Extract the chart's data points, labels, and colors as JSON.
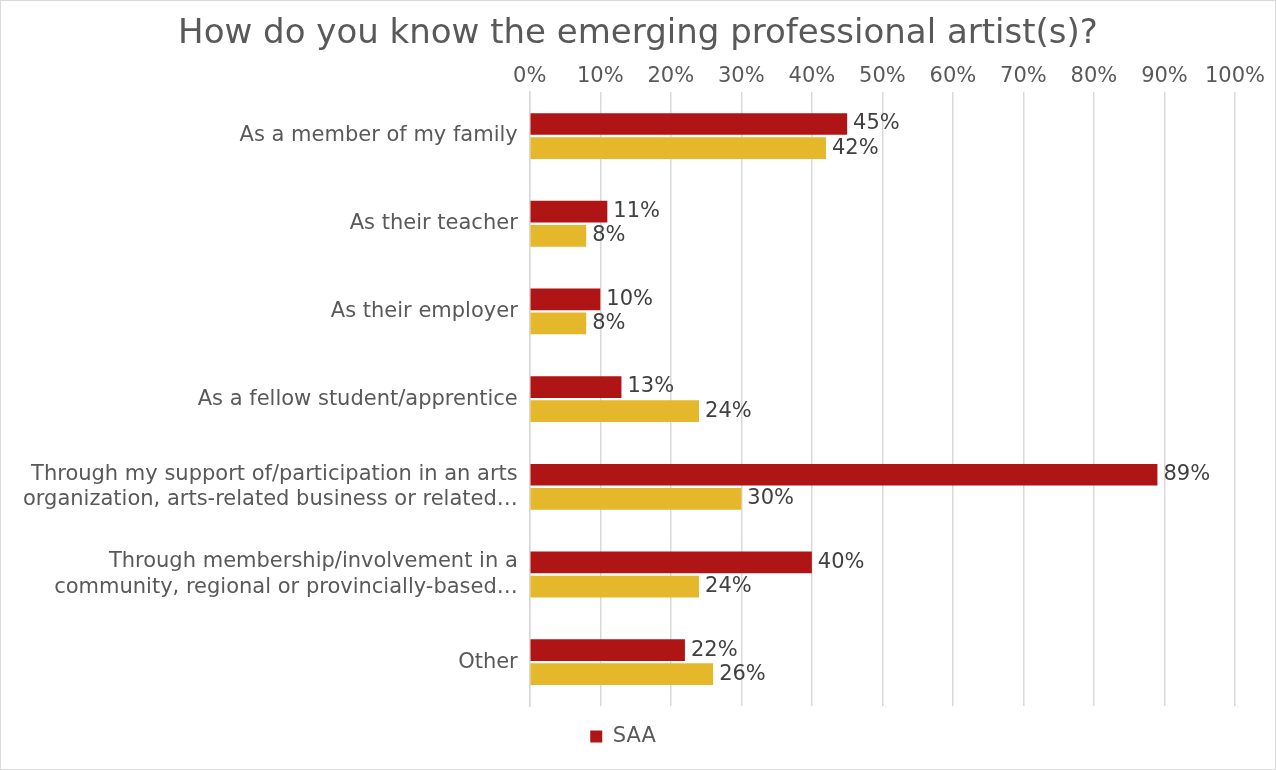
{
  "chart_data": {
    "type": "bar",
    "orientation": "horizontal",
    "title": "How do you know the emerging professional artist(s)?",
    "categories": [
      "As a member of my family",
      "As their teacher",
      "As their employer",
      "As a fellow student/apprentice",
      "Through my support of/participation in an arts organization, arts-related business or related…",
      "Through membership/involvement in a community, regional or provincially-based…",
      "Other"
    ],
    "series": [
      {
        "name": "SAA",
        "color": "#b01515",
        "values": [
          45,
          11,
          10,
          13,
          89,
          40,
          22
        ],
        "value_labels": [
          "45%",
          "11%",
          "10%",
          "13%",
          "89%",
          "40%",
          "22%"
        ]
      },
      {
        "color": "#e5b72a",
        "values": [
          42,
          8,
          8,
          24,
          30,
          24,
          26
        ],
        "value_labels": [
          "42%",
          "8%",
          "8%",
          "24%",
          "30%",
          "24%",
          "26%"
        ]
      }
    ],
    "xlim": [
      0,
      100
    ],
    "xticks": [
      {
        "value": 0,
        "label": "0%"
      },
      {
        "value": 10,
        "label": "10%"
      },
      {
        "value": 20,
        "label": "20%"
      },
      {
        "value": 30,
        "label": "30%"
      },
      {
        "value": 40,
        "label": "40%"
      },
      {
        "value": 50,
        "label": "50%"
      },
      {
        "value": 60,
        "label": "60%"
      },
      {
        "value": 70,
        "label": "70%"
      },
      {
        "value": 80,
        "label": "80%"
      },
      {
        "value": 90,
        "label": "90%"
      },
      {
        "value": 100,
        "label": "100%"
      }
    ],
    "grid": "x",
    "legend": "bottom"
  }
}
